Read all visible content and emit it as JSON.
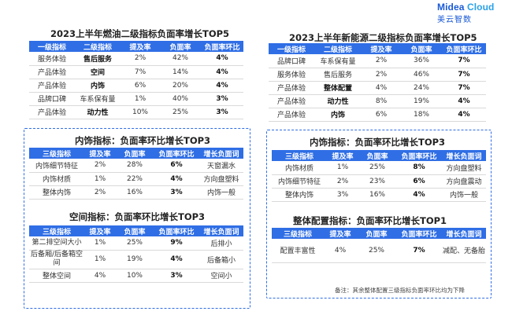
{
  "logo": {
    "brand_main": "Midea",
    "brand_accent": " Cloud",
    "sub": "美云智数"
  },
  "t1": {
    "title": "2023上半年燃油二级指标负面率增长TOP5",
    "headers": [
      "一级指标",
      "二级指标",
      "提及率",
      "负面率",
      "负面率环比"
    ],
    "rows": [
      [
        "服务体验",
        "售后服务",
        "2%",
        "42%",
        "4%"
      ],
      [
        "产品体验",
        "空间",
        "7%",
        "14%",
        "4%"
      ],
      [
        "产品体验",
        "内饰",
        "6%",
        "20%",
        "4%"
      ],
      [
        "品牌口碑",
        "车系保有量",
        "1%",
        "40%",
        "3%"
      ],
      [
        "产品体验",
        "动力性",
        "10%",
        "25%",
        "3%"
      ]
    ]
  },
  "t2": {
    "title": "2023上半年新能源二级指标负面率增长TOP5",
    "headers": [
      "一级指标",
      "二级指标",
      "提及率",
      "负面率",
      "负面率环比"
    ],
    "rows": [
      [
        "品牌口碑",
        "车系保有量",
        "2%",
        "36%",
        "7%"
      ],
      [
        "服务体验",
        "售后服务",
        "2%",
        "46%",
        "7%"
      ],
      [
        "产品体验",
        "整体配置",
        "4%",
        "24%",
        "7%"
      ],
      [
        "产品体验",
        "动力性",
        "8%",
        "19%",
        "4%"
      ],
      [
        "产品体验",
        "内饰",
        "6%",
        "18%",
        "4%"
      ]
    ]
  },
  "t3": {
    "title": "内饰指标：负面率环比增长TOP3",
    "headers": [
      "三级指标",
      "提及率",
      "负面率",
      "负面率环比",
      "增长负面词"
    ],
    "rows": [
      [
        "内饰细节特征",
        "2%",
        "28%",
        "6%",
        "天窗漏水"
      ],
      [
        "内饰材质",
        "1%",
        "22%",
        "4%",
        "方向盘塑料"
      ],
      [
        "整体内饰",
        "2%",
        "16%",
        "3%",
        "内饰一般"
      ]
    ]
  },
  "t4": {
    "title": "空间指标：负面率环比增长TOP3",
    "headers": [
      "三级指标",
      "提及率",
      "负面率",
      "负面率环比",
      "增长负面词"
    ],
    "rows": [
      [
        "第二排空间大小",
        "1%",
        "25%",
        "9%",
        "后排小"
      ],
      [
        "后备厢/后备箱空间",
        "1%",
        "19%",
        "4%",
        "后备箱小"
      ],
      [
        "整体空间",
        "4%",
        "10%",
        "3%",
        "空间小"
      ]
    ]
  },
  "t5": {
    "title": "内饰指标：负面率环比增长TOP3",
    "headers": [
      "三级指标",
      "提及率",
      "负面率",
      "负面率环比",
      "增长负面词"
    ],
    "rows": [
      [
        "内饰材质",
        "1%",
        "25%",
        "8%",
        "方向盘塑料"
      ],
      [
        "内饰细节特征",
        "2%",
        "23%",
        "6%",
        "方向盘震动"
      ],
      [
        "整体内饰",
        "3%",
        "16%",
        "4%",
        "内饰一般"
      ]
    ]
  },
  "t6": {
    "title": "整体配置指标：负面率环比增长TOP1",
    "headers": [
      "三级指标",
      "提及率",
      "负面率",
      "负面率环比",
      "增长负面词"
    ],
    "rows": [
      [
        "配置丰富性",
        "4%",
        "25%",
        "7%",
        "减配、无备胎"
      ]
    ]
  },
  "note": "备注：其余整体配置三级指标负面率环比均为下降"
}
